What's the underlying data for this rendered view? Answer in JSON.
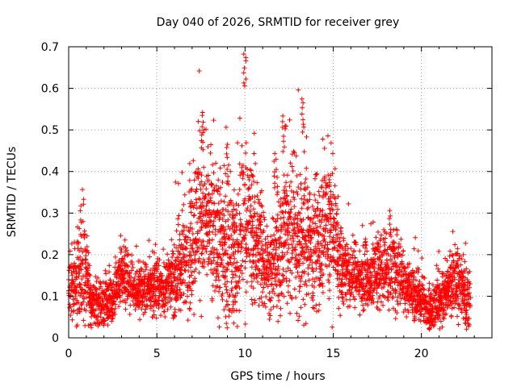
{
  "chart_data": {
    "type": "scatter",
    "title": "Day 040 of 2026, SRMTID for receiver grey",
    "xlabel": "GPS time / hours",
    "ylabel": "SRMTID / TECUs",
    "xlim": [
      0,
      24
    ],
    "ylim": [
      0,
      0.7
    ],
    "xticks": [
      0,
      5,
      10,
      15,
      20
    ],
    "yticks": [
      0,
      0.1,
      0.2,
      0.3,
      0.4,
      0.5,
      0.6,
      0.7
    ],
    "xtick_labels": [
      "0",
      "5",
      "10",
      "15",
      "20"
    ],
    "ytick_labels": [
      "0",
      "0.1",
      "0.2",
      "0.3",
      "0.4",
      "0.5",
      "0.6",
      "0.7"
    ],
    "grid": true,
    "marker": "+",
    "color": "#ff0000",
    "data_extent_hours": [
      0,
      22.8
    ],
    "spikes": [
      {
        "x": 7.6,
        "y": 0.55
      },
      {
        "x": 10.0,
        "y": 0.69
      },
      {
        "x": 12.2,
        "y": 0.54
      },
      {
        "x": 13.3,
        "y": 0.58
      },
      {
        "x": 9.0,
        "y": 0.47
      },
      {
        "x": 11.7,
        "y": 0.45
      },
      {
        "x": 14.8,
        "y": 0.4
      },
      {
        "x": 21.2,
        "y": 0.0
      }
    ],
    "envelope": [
      {
        "x": 0.0,
        "base": 0.1,
        "spread": 0.06
      },
      {
        "x": 0.5,
        "base": 0.14,
        "spread": 0.1
      },
      {
        "x": 0.8,
        "base": 0.18,
        "spread": 0.15
      },
      {
        "x": 1.2,
        "base": 0.09,
        "spread": 0.05
      },
      {
        "x": 2.0,
        "base": 0.08,
        "spread": 0.05
      },
      {
        "x": 2.5,
        "base": 0.09,
        "spread": 0.05
      },
      {
        "x": 3.0,
        "base": 0.16,
        "spread": 0.06
      },
      {
        "x": 3.5,
        "base": 0.12,
        "spread": 0.05
      },
      {
        "x": 4.5,
        "base": 0.12,
        "spread": 0.05
      },
      {
        "x": 5.5,
        "base": 0.12,
        "spread": 0.05
      },
      {
        "x": 6.5,
        "base": 0.18,
        "spread": 0.1
      },
      {
        "x": 7.0,
        "base": 0.25,
        "spread": 0.14
      },
      {
        "x": 7.5,
        "base": 0.3,
        "spread": 0.15
      },
      {
        "x": 8.5,
        "base": 0.22,
        "spread": 0.14
      },
      {
        "x": 9.5,
        "base": 0.2,
        "spread": 0.13
      },
      {
        "x": 10.0,
        "base": 0.28,
        "spread": 0.17
      },
      {
        "x": 10.8,
        "base": 0.22,
        "spread": 0.12
      },
      {
        "x": 11.5,
        "base": 0.15,
        "spread": 0.08
      },
      {
        "x": 12.3,
        "base": 0.25,
        "spread": 0.15
      },
      {
        "x": 13.3,
        "base": 0.24,
        "spread": 0.15
      },
      {
        "x": 14.0,
        "base": 0.22,
        "spread": 0.13
      },
      {
        "x": 15.0,
        "base": 0.25,
        "spread": 0.13
      },
      {
        "x": 15.5,
        "base": 0.17,
        "spread": 0.07
      },
      {
        "x": 16.5,
        "base": 0.14,
        "spread": 0.06
      },
      {
        "x": 17.5,
        "base": 0.16,
        "spread": 0.08
      },
      {
        "x": 18.5,
        "base": 0.17,
        "spread": 0.08
      },
      {
        "x": 19.5,
        "base": 0.11,
        "spread": 0.05
      },
      {
        "x": 20.5,
        "base": 0.07,
        "spread": 0.04
      },
      {
        "x": 21.5,
        "base": 0.11,
        "spread": 0.06
      },
      {
        "x": 22.0,
        "base": 0.14,
        "spread": 0.07
      },
      {
        "x": 22.8,
        "base": 0.08,
        "spread": 0.05
      }
    ]
  }
}
